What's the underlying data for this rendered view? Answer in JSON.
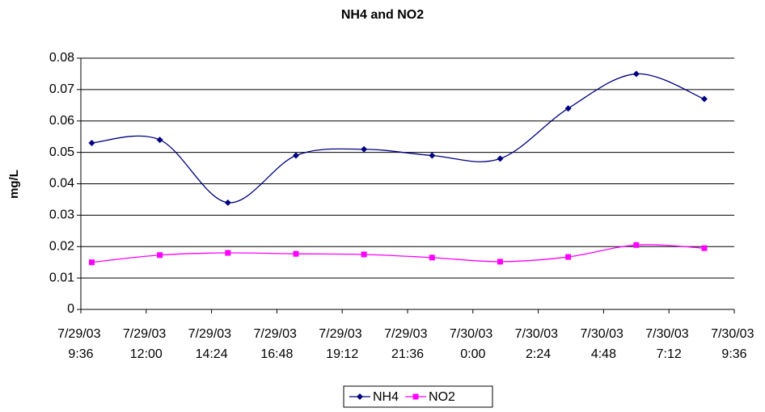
{
  "chart_data": {
    "type": "line",
    "title": "NH4 and NO2",
    "y_label": "mg/L",
    "x": [
      "2003-07-29T10:00",
      "2003-07-29T12:30",
      "2003-07-29T15:00",
      "2003-07-29T17:30",
      "2003-07-29T20:00",
      "2003-07-29T22:30",
      "2003-07-30T01:00",
      "2003-07-30T03:30",
      "2003-07-30T06:00",
      "2003-07-30T08:30"
    ],
    "series": [
      {
        "name": "NH4",
        "color": "#000080",
        "marker": "diamond",
        "values": [
          0.053,
          0.054,
          0.034,
          0.049,
          0.051,
          0.049,
          0.048,
          0.064,
          0.075,
          0.067
        ]
      },
      {
        "name": "NO2",
        "color": "#ff00ff",
        "marker": "square",
        "values": [
          0.015,
          0.0173,
          0.018,
          0.0177,
          0.0175,
          0.0165,
          0.0152,
          0.0167,
          0.0205,
          0.0195
        ]
      }
    ],
    "xlim": [
      "2003-07-29T09:36",
      "2003-07-30T09:36"
    ],
    "xticks": [
      {
        "value": "2003-07-29T09:36",
        "label": "7/29/03 9:36"
      },
      {
        "value": "2003-07-29T12:00",
        "label": "7/29/03 12:00"
      },
      {
        "value": "2003-07-29T14:24",
        "label": "7/29/03 14:24"
      },
      {
        "value": "2003-07-29T16:48",
        "label": "7/29/03 16:48"
      },
      {
        "value": "2003-07-29T19:12",
        "label": "7/29/03 19:12"
      },
      {
        "value": "2003-07-29T21:36",
        "label": "7/29/03 21:36"
      },
      {
        "value": "2003-07-30T00:00",
        "label": "7/30/03 0:00"
      },
      {
        "value": "2003-07-30T02:24",
        "label": "7/30/03 2:24"
      },
      {
        "value": "2003-07-30T04:48",
        "label": "7/30/03 4:48"
      },
      {
        "value": "2003-07-30T07:12",
        "label": "7/30/03 7:12"
      },
      {
        "value": "2003-07-30T09:36",
        "label": "7/30/03 9:36"
      }
    ],
    "ylim": [
      0,
      0.08
    ],
    "yticks": [
      0,
      0.01,
      0.02,
      0.03,
      0.04,
      0.05,
      0.06,
      0.07,
      0.08
    ],
    "grid": true,
    "smooth": true,
    "legend": "bottom"
  }
}
